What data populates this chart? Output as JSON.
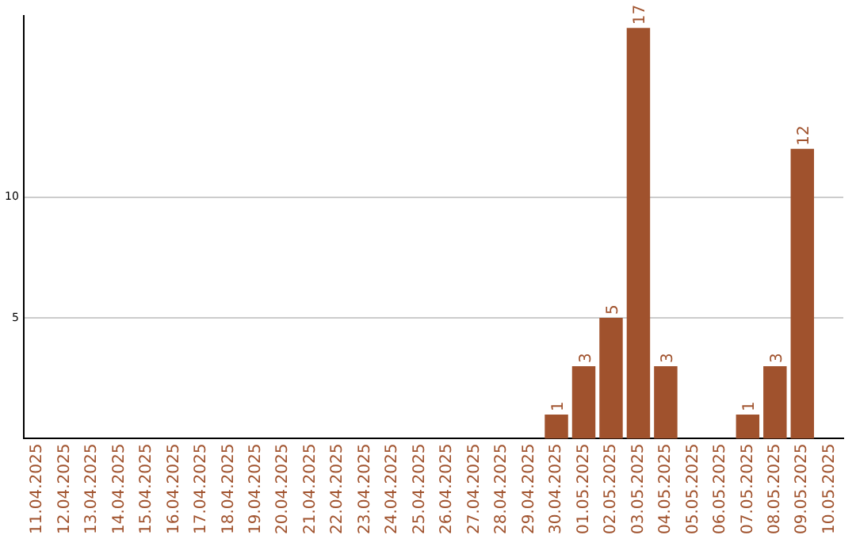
{
  "chart_data": {
    "type": "bar",
    "categories": [
      "11.04.2025",
      "12.04.2025",
      "13.04.2025",
      "14.04.2025",
      "15.04.2025",
      "16.04.2025",
      "17.04.2025",
      "18.04.2025",
      "19.04.2025",
      "20.04.2025",
      "21.04.2025",
      "22.04.2025",
      "23.04.2025",
      "24.04.2025",
      "25.04.2025",
      "26.04.2025",
      "27.04.2025",
      "28.04.2025",
      "29.04.2025",
      "30.04.2025",
      "01.05.2025",
      "02.05.2025",
      "03.05.2025",
      "04.05.2025",
      "05.05.2025",
      "06.05.2025",
      "07.05.2025",
      "08.05.2025",
      "09.05.2025",
      "10.05.2025"
    ],
    "values": [
      0,
      0,
      0,
      0,
      0,
      0,
      0,
      0,
      0,
      0,
      0,
      0,
      0,
      0,
      0,
      0,
      0,
      0,
      0,
      1,
      3,
      5,
      17,
      3,
      0,
      0,
      1,
      3,
      12,
      0
    ],
    "value_labels": [
      null,
      null,
      null,
      null,
      null,
      null,
      null,
      null,
      null,
      null,
      null,
      null,
      null,
      null,
      null,
      null,
      null,
      null,
      null,
      "1",
      "3",
      "5",
      "17",
      "3",
      null,
      null,
      "1",
      "3",
      "12",
      null
    ],
    "color": "#a0522d",
    "ylim": [
      0,
      17.5
    ],
    "yticks": [
      5,
      10
    ],
    "grid": "y"
  }
}
